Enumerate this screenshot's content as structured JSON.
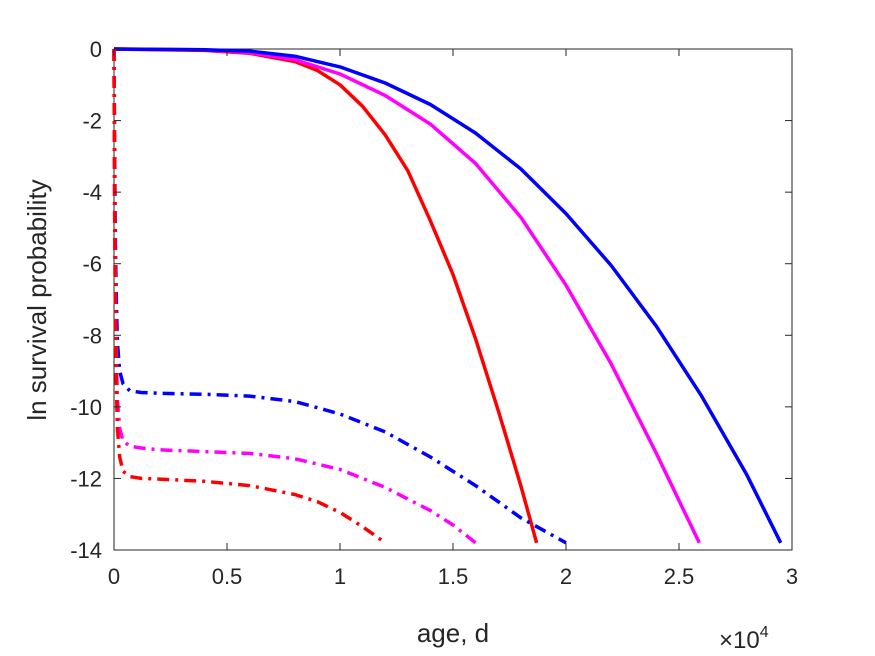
{
  "chart_data": {
    "type": "line",
    "title": "",
    "xlabel": "age, d",
    "ylabel": "ln survival probability",
    "x_exponent_base": "×10",
    "x_exponent_power": "4",
    "xlim": [
      0,
      30000
    ],
    "ylim": [
      -14,
      0
    ],
    "x_tick_labels": [
      "0",
      "0.5",
      "1",
      "1.5",
      "2",
      "2.5",
      "3"
    ],
    "x_tick_values": [
      0,
      5000,
      10000,
      15000,
      20000,
      25000,
      30000
    ],
    "y_tick_labels": [
      "0",
      "-2",
      "-4",
      "-6",
      "-8",
      "-10",
      "-12",
      "-14"
    ],
    "y_tick_values": [
      0,
      -2,
      -4,
      -6,
      -8,
      -10,
      -12,
      -14
    ],
    "grid": false,
    "series": [
      {
        "color": "#ff0000",
        "style": "solid",
        "x": [
          0,
          2000,
          4000,
          6000,
          8000,
          9000,
          10000,
          11000,
          12000,
          13000,
          14000,
          15000,
          16000,
          17000,
          18000,
          18700
        ],
        "y": [
          0,
          -0.02,
          -0.04,
          -0.12,
          -0.35,
          -0.6,
          -1.0,
          -1.6,
          -2.4,
          -3.4,
          -4.8,
          -6.3,
          -8.1,
          -10.1,
          -12.2,
          -13.8
        ]
      },
      {
        "color": "#ff00ff",
        "style": "solid",
        "x": [
          0,
          4000,
          6000,
          8000,
          10000,
          12000,
          14000,
          16000,
          18000,
          20000,
          22000,
          24000,
          25900
        ],
        "y": [
          0,
          -0.02,
          -0.1,
          -0.3,
          -0.7,
          -1.3,
          -2.1,
          -3.2,
          -4.7,
          -6.6,
          -8.8,
          -11.3,
          -13.8
        ]
      },
      {
        "color": "#0000ff",
        "style": "solid",
        "x": [
          0,
          4000,
          6000,
          8000,
          10000,
          12000,
          14000,
          16000,
          18000,
          20000,
          22000,
          24000,
          26000,
          28000,
          29500
        ],
        "y": [
          0,
          -0.02,
          -0.06,
          -0.2,
          -0.5,
          -0.95,
          -1.55,
          -2.35,
          -3.35,
          -4.6,
          -6.05,
          -7.75,
          -9.7,
          -11.9,
          -13.8
        ]
      },
      {
        "color": "#0000ff",
        "style": "dashdot",
        "x": [
          0,
          30,
          60,
          100,
          150,
          250,
          400,
          700,
          1200,
          2000,
          4000,
          6000,
          8000,
          10000,
          12000,
          14000,
          16000,
          18000,
          20000
        ],
        "y": [
          0,
          -3.0,
          -5.5,
          -7.0,
          -8.2,
          -9.0,
          -9.35,
          -9.55,
          -9.6,
          -9.62,
          -9.65,
          -9.7,
          -9.85,
          -10.2,
          -10.7,
          -11.4,
          -12.2,
          -13.1,
          -13.8
        ]
      },
      {
        "color": "#ff00ff",
        "style": "dashdot",
        "x": [
          0,
          30,
          60,
          100,
          150,
          250,
          400,
          700,
          1200,
          2000,
          4000,
          6000,
          8000,
          10000,
          12000,
          14000,
          15000,
          16000
        ],
        "y": [
          0,
          -4.5,
          -7.0,
          -8.6,
          -9.8,
          -10.6,
          -10.95,
          -11.1,
          -11.15,
          -11.2,
          -11.25,
          -11.3,
          -11.45,
          -11.75,
          -12.25,
          -12.9,
          -13.3,
          -13.8
        ]
      },
      {
        "color": "#ff0000",
        "style": "dashdot",
        "x": [
          0,
          30,
          60,
          100,
          150,
          250,
          400,
          700,
          1200,
          2000,
          3000,
          4000,
          6000,
          8000,
          9000,
          10000,
          11000,
          12000
        ],
        "y": [
          0,
          -5.0,
          -7.5,
          -9.3,
          -10.6,
          -11.4,
          -11.8,
          -11.95,
          -12.0,
          -12.02,
          -12.05,
          -12.08,
          -12.2,
          -12.45,
          -12.65,
          -12.95,
          -13.35,
          -13.8
        ]
      }
    ]
  }
}
